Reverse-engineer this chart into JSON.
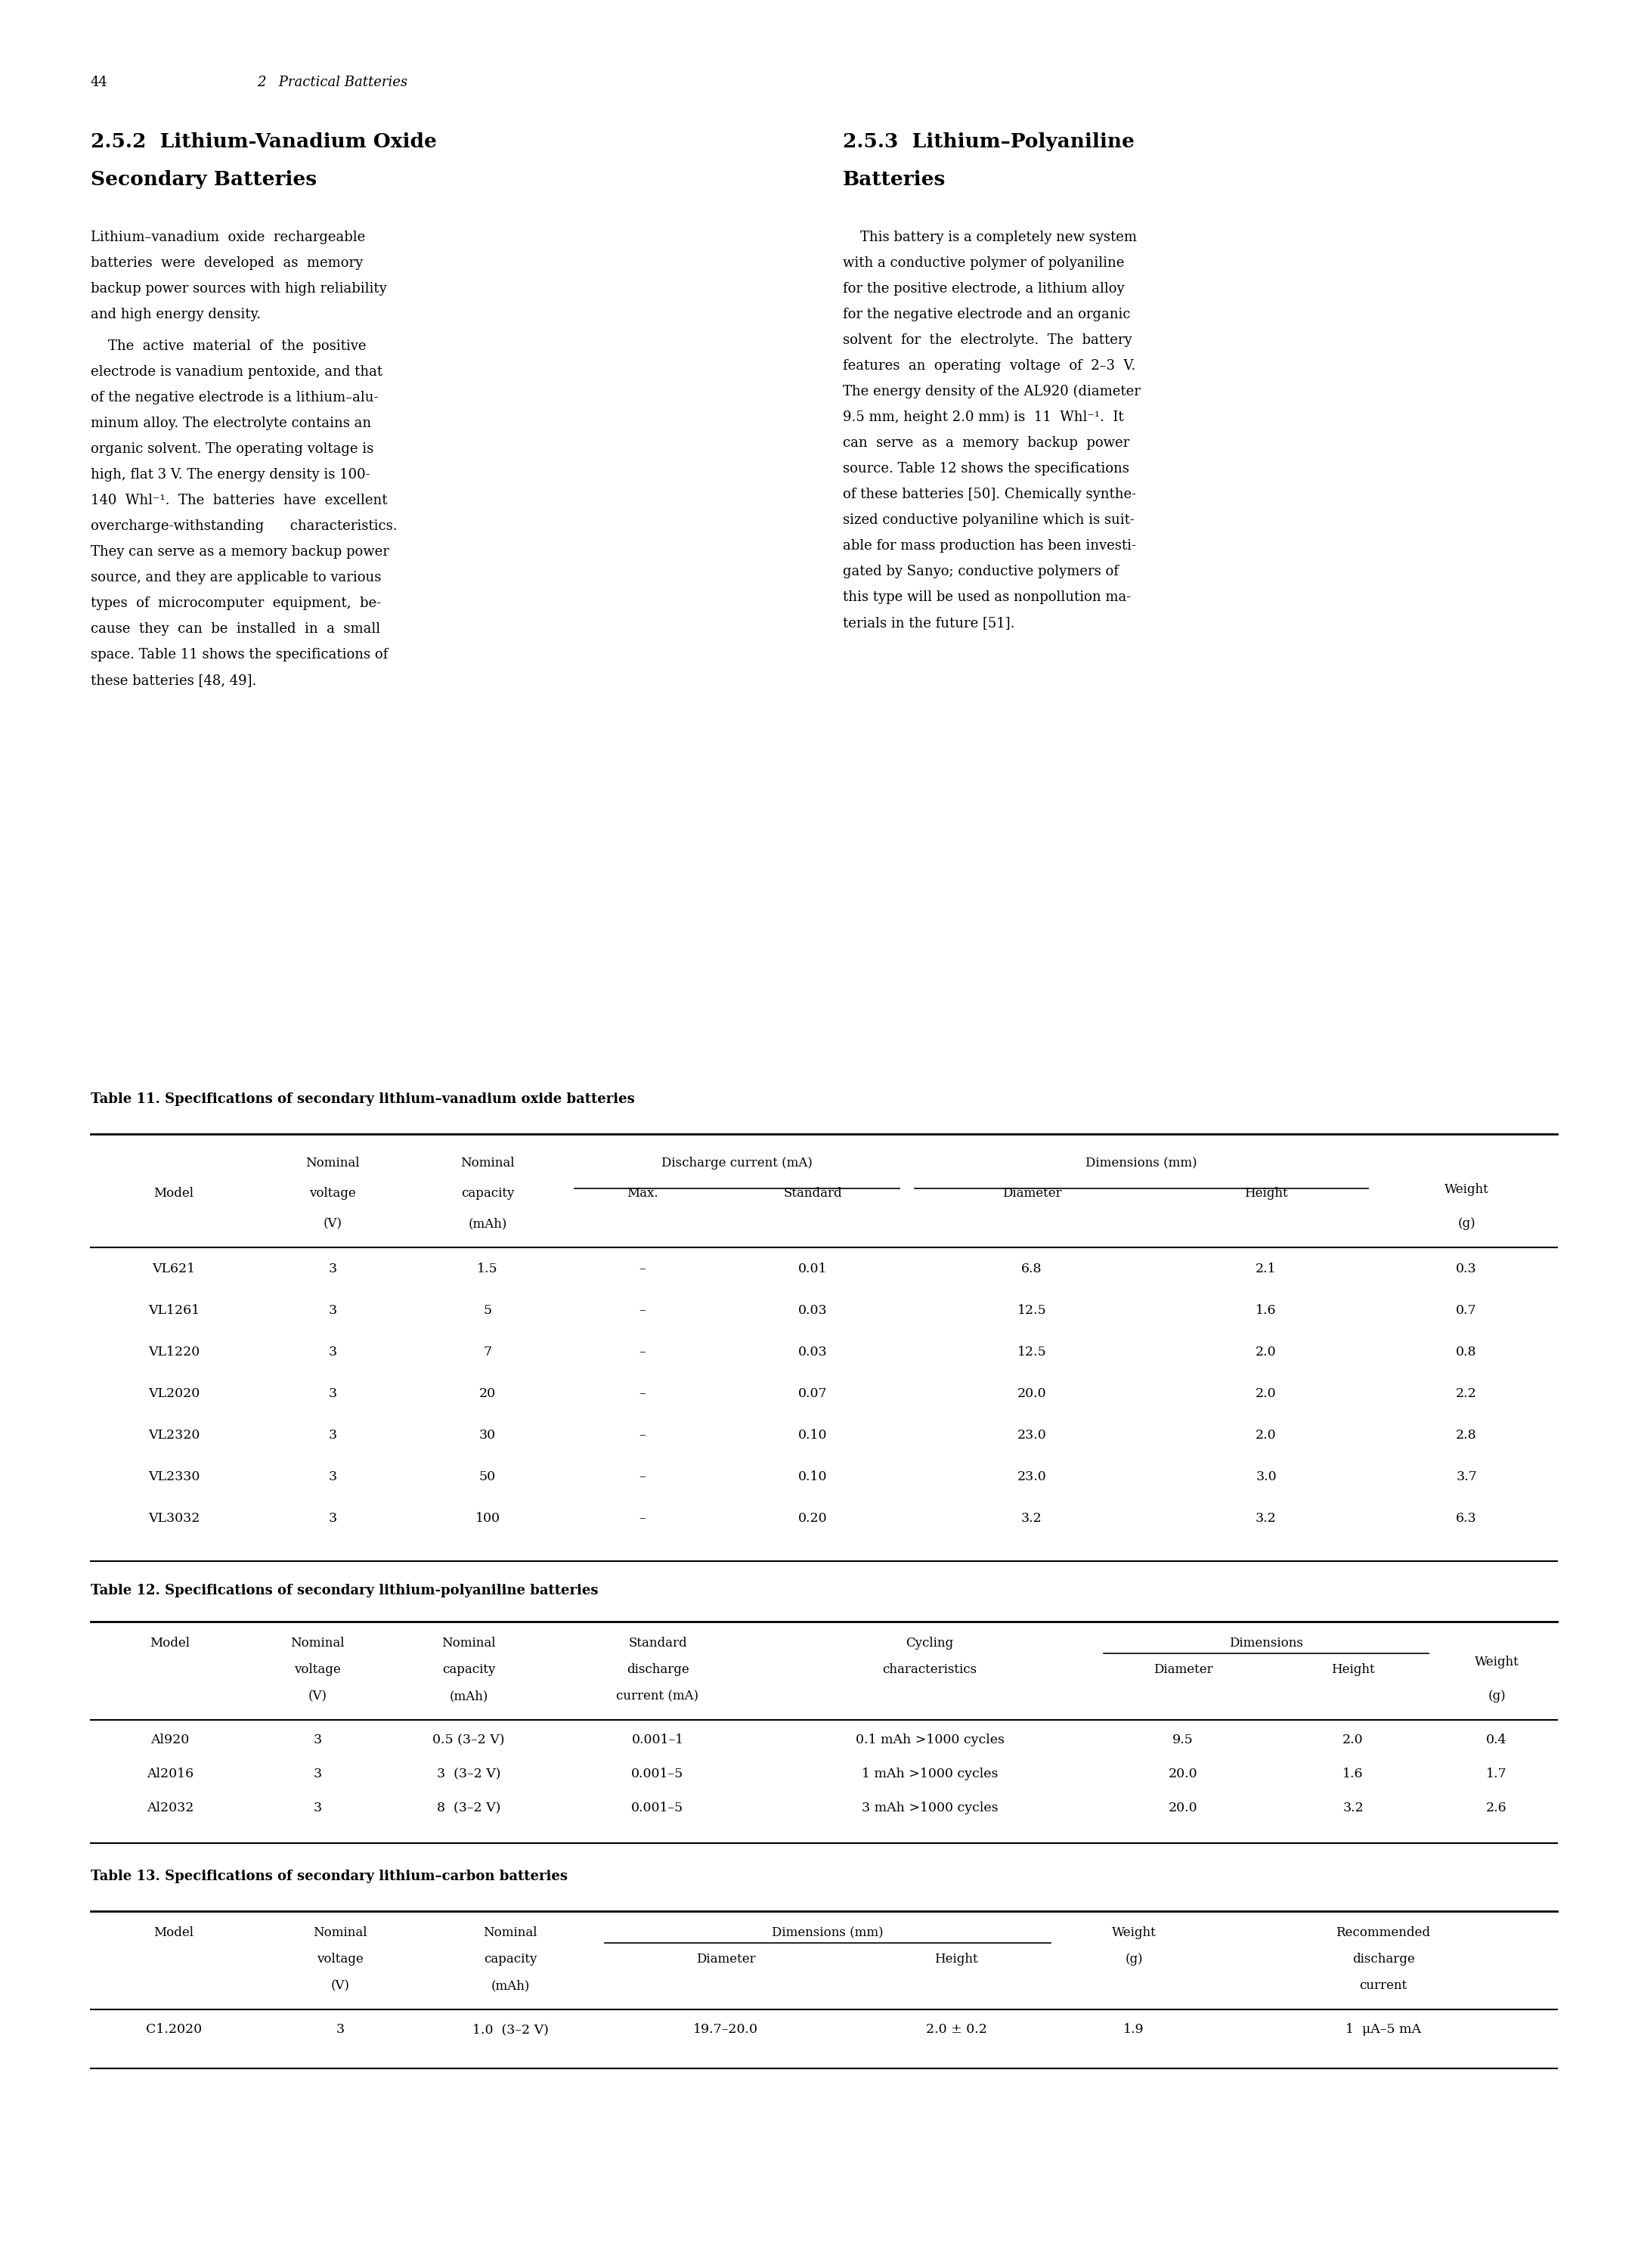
{
  "page_number": "44",
  "chapter_header": "2   Practical Batteries",
  "bg_color": "#ffffff",
  "text_color": "#000000",
  "section_left_title_line1": "2.5.2  Lithium-Vanadium Oxide",
  "section_left_title_line2": "Secondary Batteries",
  "section_right_title_line1": "2.5.3  Lithium–Polyaniline",
  "section_right_title_line2": "Batteries",
  "left_para1_lines": [
    "Lithium–vanadium  oxide  rechargeable",
    "batteries  were  developed  as  memory",
    "backup power sources with high reliability",
    "and high energy density."
  ],
  "left_para2_lines": [
    "    The  active  material  of  the  positive",
    "electrode is vanadium pentoxide, and that",
    "of the negative electrode is a lithium–alu-",
    "minum alloy. The electrolyte contains an",
    "organic solvent. The operating voltage is",
    "high, flat 3 V. The energy density is 100-",
    "140  Whl⁻¹.  The  batteries  have  excellent",
    "overcharge-withstanding      characteristics.",
    "They can serve as a memory backup power",
    "source, and they are applicable to various",
    "types  of  microcomputer  equipment,  be-",
    "cause  they  can  be  installed  in  a  small",
    "space. Table 11 shows the specifications of",
    "these batteries [48, 49]."
  ],
  "right_para1_lines": [
    "    This battery is a completely new system",
    "with a conductive polymer of polyaniline",
    "for the positive electrode, a lithium alloy",
    "for the negative electrode and an organic",
    "solvent  for  the  electrolyte.  The  battery",
    "features  an  operating  voltage  of  2–3  V.",
    "The energy density of the AL920 (diameter",
    "9.5 mm, height 2.0 mm) is  11  Whl⁻¹.  It",
    "can  serve  as  a  memory  backup  power",
    "source. Table 12 shows the specifications",
    "of these batteries [50]. Chemically synthe-",
    "sized conductive polyaniline which is suit-",
    "able for mass production has been investi-",
    "gated by Sanyo; conductive polymers of",
    "this type will be used as nonpollution ma-",
    "terials in the future [51]."
  ],
  "table11_title": "Table 11. Specifications of secondary lithium–vanadium oxide batteries",
  "table11_data": [
    [
      "VL621",
      "3",
      "1.5",
      "–",
      "0.01",
      "6.8",
      "2.1",
      "0.3"
    ],
    [
      "VL1261",
      "3",
      "5",
      "–",
      "0.03",
      "12.5",
      "1.6",
      "0.7"
    ],
    [
      "VL1220",
      "3",
      "7",
      "–",
      "0.03",
      "12.5",
      "2.0",
      "0.8"
    ],
    [
      "VL2020",
      "3",
      "20",
      "–",
      "0.07",
      "20.0",
      "2.0",
      "2.2"
    ],
    [
      "VL2320",
      "3",
      "30",
      "–",
      "0.10",
      "23.0",
      "2.0",
      "2.8"
    ],
    [
      "VL2330",
      "3",
      "50",
      "–",
      "0.10",
      "23.0",
      "3.0",
      "3.7"
    ],
    [
      "VL3032",
      "3",
      "100",
      "–",
      "0.20",
      "3.2",
      "3.2",
      "6.3"
    ]
  ],
  "table12_title": "Table 12. Specifications of secondary lithium-polyaniline batteries",
  "table12_data": [
    [
      "Al920",
      "3",
      "0.5 (3–2 V)",
      "0.001–1",
      "0.1 mAh >1000 cycles",
      "9.5",
      "2.0",
      "0.4"
    ],
    [
      "Al2016",
      "3",
      "3  (3–2 V)",
      "0.001–5",
      "1 mAh >1000 cycles",
      "20.0",
      "1.6",
      "1.7"
    ],
    [
      "Al2032",
      "3",
      "8  (3–2 V)",
      "0.001–5",
      "3 mAh >1000 cycles",
      "20.0",
      "3.2",
      "2.6"
    ]
  ],
  "table13_title": "Table 13. Specifications of secondary lithium–carbon batteries",
  "table13_data": [
    [
      "C1.2020",
      "3",
      "1.0  (3–2 V)",
      "19.7–20.0",
      "2.0 ± 0.2",
      "1.9",
      "1  μA–5 mA"
    ]
  ]
}
